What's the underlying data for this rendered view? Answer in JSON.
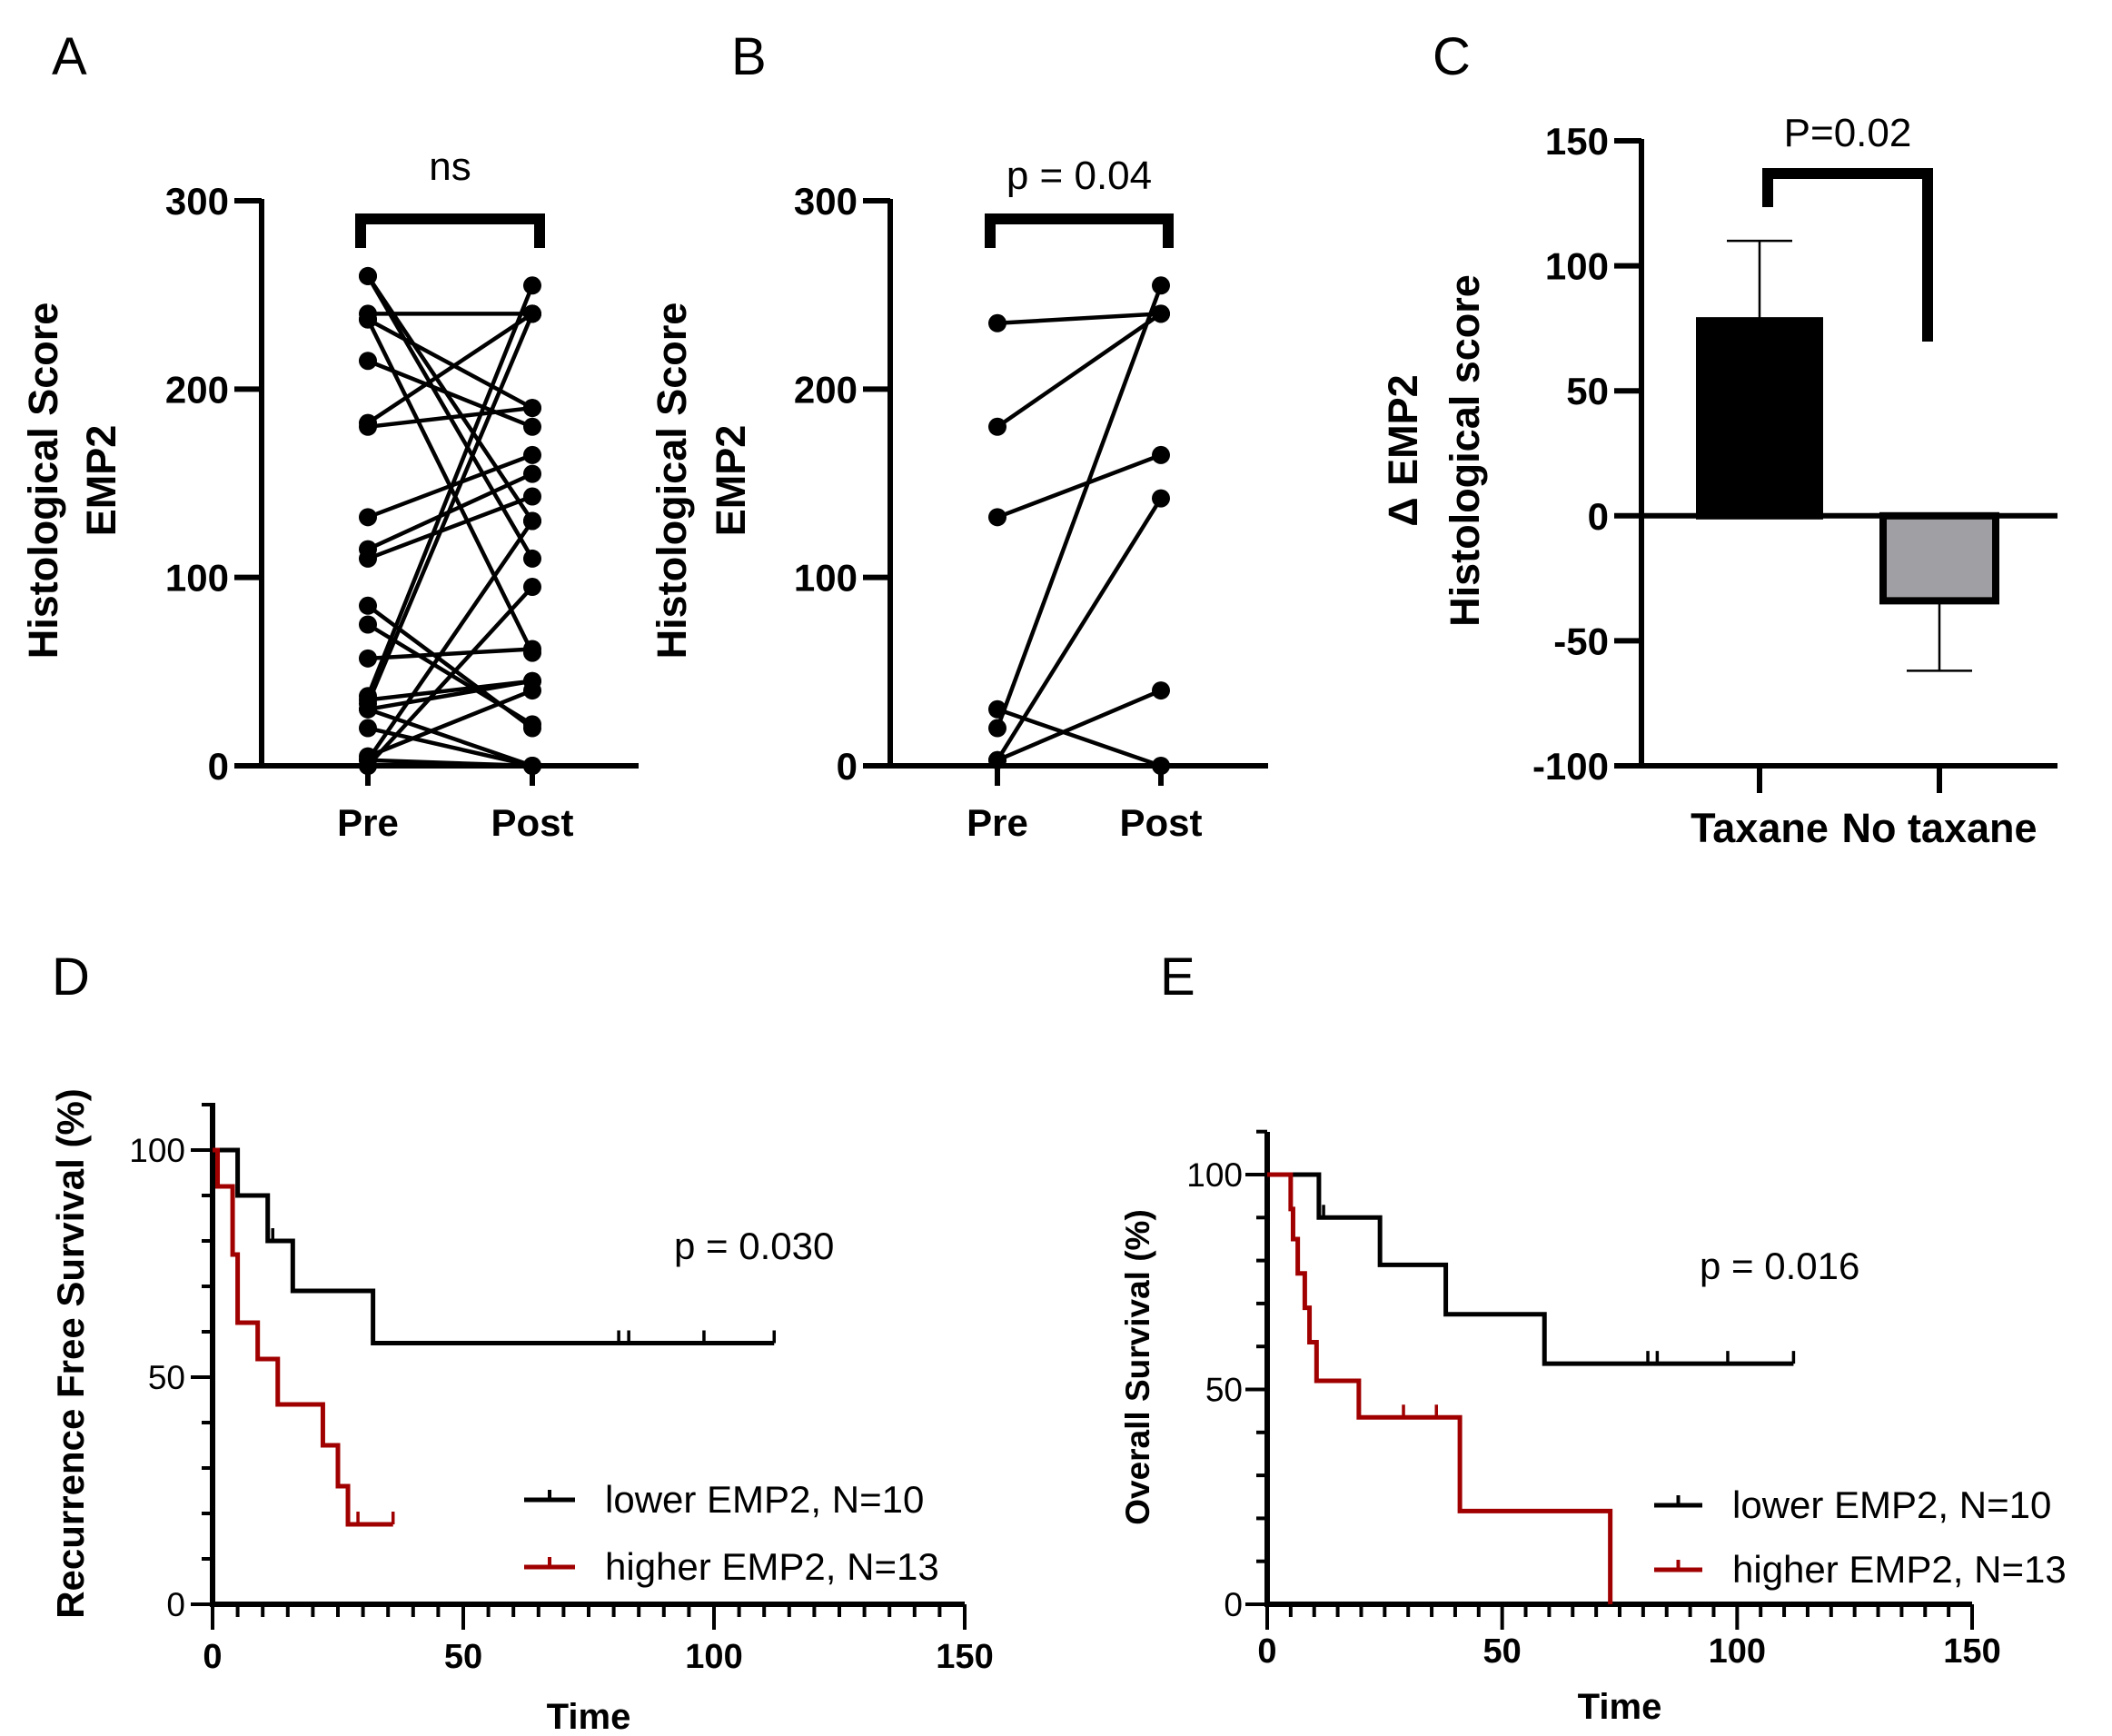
{
  "chart_data": [
    {
      "panel_label": "A",
      "type": "line",
      "title": "",
      "ylabel": [
        "Histological Score",
        "EMP2"
      ],
      "xlabel": "",
      "categories": [
        "Pre",
        "Post"
      ],
      "ylim": [
        0,
        300
      ],
      "yticks": [
        0,
        100,
        200,
        300
      ],
      "annotation": "ns",
      "pairs": [
        [
          260,
          130
        ],
        [
          260,
          110
        ],
        [
          240,
          240
        ],
        [
          237,
          60
        ],
        [
          237,
          190
        ],
        [
          215,
          180
        ],
        [
          182,
          240
        ],
        [
          180,
          190
        ],
        [
          132,
          165
        ],
        [
          115,
          155
        ],
        [
          110,
          143
        ],
        [
          85,
          20
        ],
        [
          75,
          22
        ],
        [
          57,
          62
        ],
        [
          37,
          255
        ],
        [
          33,
          240
        ],
        [
          30,
          0
        ],
        [
          30,
          45
        ],
        [
          20,
          0
        ],
        [
          5,
          40
        ],
        [
          3,
          130
        ],
        [
          0,
          0
        ],
        [
          0,
          95
        ],
        [
          3,
          0
        ],
        [
          35,
          45
        ]
      ]
    },
    {
      "panel_label": "B",
      "type": "line",
      "title": "",
      "ylabel": [
        "Histological Score",
        "EMP2"
      ],
      "xlabel": "",
      "categories": [
        "Pre",
        "Post"
      ],
      "ylim": [
        0,
        300
      ],
      "yticks": [
        0,
        100,
        200,
        300
      ],
      "annotation": "p = 0.04",
      "pairs": [
        [
          235,
          240
        ],
        [
          180,
          240
        ],
        [
          132,
          165
        ],
        [
          30,
          0
        ],
        [
          20,
          255
        ],
        [
          3,
          142
        ],
        [
          3,
          40
        ]
      ]
    },
    {
      "panel_label": "C",
      "type": "bar",
      "title": "",
      "ylabel": [
        "Δ EMP2",
        "Histological score"
      ],
      "xlabel": "",
      "categories": [
        "Taxane",
        "No taxane"
      ],
      "values": [
        78,
        -34
      ],
      "errors": [
        32,
        28
      ],
      "colors": [
        "#000000",
        "#a0a0a4"
      ],
      "ylim": [
        -100,
        150
      ],
      "yticks": [
        -100,
        -50,
        0,
        50,
        100,
        150
      ],
      "annotation": "P=0.02"
    },
    {
      "panel_label": "D",
      "type": "line",
      "title": "",
      "ylabel": "Recurrence Free Survival (%)",
      "xlabel": "Time",
      "xlim": [
        0,
        150
      ],
      "ylim": [
        0,
        110
      ],
      "xticks": [
        0,
        50,
        100,
        150
      ],
      "yticks": [
        0,
        50,
        100
      ],
      "annotation": "p = 0.030",
      "legend_position": "bottom-right",
      "series": [
        {
          "name": "lower EMP2, N=10",
          "color": "#000000",
          "steps": [
            [
              0,
              100
            ],
            [
              5,
              90
            ],
            [
              11,
              80
            ],
            [
              16,
              69
            ],
            [
              32,
              57.5
            ]
          ],
          "end": 112,
          "censored": [
            12,
            81,
            83,
            98,
            112
          ]
        },
        {
          "name": "higher EMP2, N=13",
          "color": "#a00000",
          "steps": [
            [
              0,
              100
            ],
            [
              1,
              92
            ],
            [
              4,
              77
            ],
            [
              5,
              62
            ],
            [
              9,
              54
            ],
            [
              13,
              44
            ],
            [
              22,
              35
            ],
            [
              25,
              26
            ],
            [
              27,
              17.6
            ]
          ],
          "end": 36,
          "censored": [
            29,
            36
          ]
        }
      ]
    },
    {
      "panel_label": "E",
      "type": "line",
      "title": "",
      "ylabel": "Overall Survival (%)",
      "xlabel": "Time",
      "xlim": [
        0,
        150
      ],
      "ylim": [
        0,
        110
      ],
      "xticks": [
        0,
        50,
        100,
        150
      ],
      "yticks": [
        0,
        50,
        100
      ],
      "annotation": "p = 0.016",
      "legend_position": "bottom-right",
      "series": [
        {
          "name": "lower EMP2, N=10",
          "color": "#000000",
          "steps": [
            [
              0,
              100
            ],
            [
              11,
              90
            ],
            [
              24,
              79
            ],
            [
              38,
              67.5
            ],
            [
              59,
              56
            ]
          ],
          "end": 112,
          "censored": [
            12,
            81,
            83,
            98,
            112
          ]
        },
        {
          "name": "higher EMP2, N=13",
          "color": "#a00000",
          "steps": [
            [
              0,
              100
            ],
            [
              5,
              92
            ],
            [
              5.5,
              85
            ],
            [
              6.5,
              77
            ],
            [
              8,
              69
            ],
            [
              9,
              61
            ],
            [
              10.5,
              52
            ],
            [
              19.5,
              43.5
            ],
            [
              41,
              21.7
            ],
            [
              73,
              0
            ]
          ],
          "end": 73,
          "censored": [
            29,
            36
          ]
        }
      ]
    }
  ]
}
